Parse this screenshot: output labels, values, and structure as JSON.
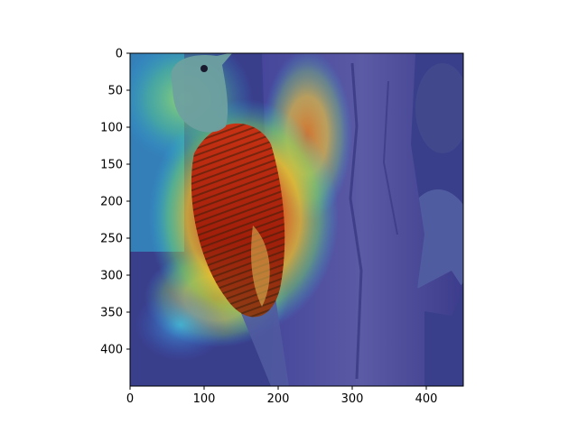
{
  "chart_data": {
    "type": "heatmap",
    "title": "",
    "xlabel": "",
    "ylabel": "",
    "xlim": [
      0,
      450
    ],
    "ylim": [
      450,
      0
    ],
    "x_ticks": [
      0,
      100,
      200,
      300,
      400
    ],
    "y_ticks": [
      0,
      50,
      100,
      150,
      200,
      250,
      300,
      350,
      400
    ],
    "colormap": "jet",
    "overlay": "saliency heatmap over woodpecker photo",
    "hotspots": [
      {
        "x": 110,
        "y": 215,
        "intensity": 1.0
      },
      {
        "x": 140,
        "y": 270,
        "intensity": 0.9
      },
      {
        "x": 245,
        "y": 105,
        "intensity": 0.75
      },
      {
        "x": 60,
        "y": 110,
        "intensity": 0.45
      },
      {
        "x": 95,
        "y": 325,
        "intensity": 0.4
      }
    ],
    "grid": false,
    "legend": "none"
  },
  "colors": {
    "base_blue": "#3c3caa",
    "hot": "#d21e0a",
    "warm": "#ffc81e",
    "mid": "#78e664",
    "cool": "#1ec8f0"
  }
}
